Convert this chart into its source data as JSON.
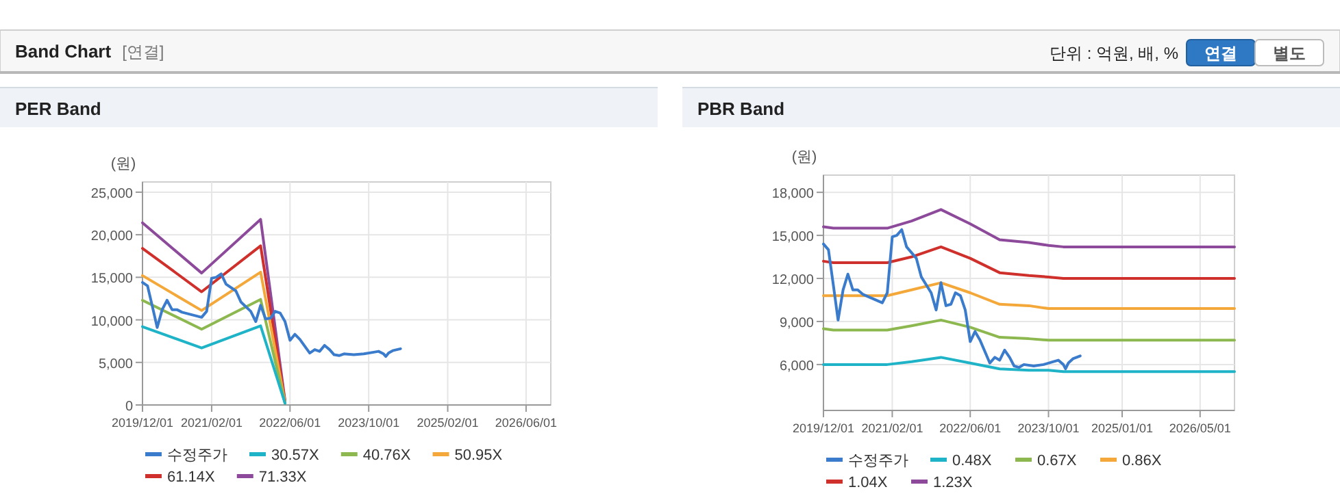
{
  "chart_data": [
    {
      "type": "other",
      "title": "Band Chart",
      "annotations": [
        "[연결]",
        "단위 : 억원, 배, %",
        "연결",
        "별도"
      ]
    },
    {
      "type": "line",
      "title": "PER Band",
      "ylabel": "(원)",
      "legend": "bottom",
      "grid": true,
      "xlim": [
        "2019-12-01",
        "2026-11-01"
      ],
      "ylim": [
        0,
        26200
      ],
      "yticks": [
        0,
        {
          "value": 5000,
          "label": "5,000"
        },
        {
          "value": 10000,
          "label": "10,000"
        },
        {
          "value": 15000,
          "label": "15,000"
        },
        {
          "value": 20000,
          "label": "20,000"
        },
        {
          "value": 25000,
          "label": "25,000"
        }
      ],
      "xticks": [
        {
          "value": "2019-12-01",
          "label": "2019/12/01"
        },
        {
          "value": "2021-02-01",
          "label": "2021/02/01"
        },
        {
          "value": "2022-06-01",
          "label": "2022/06/01"
        },
        {
          "value": "2023-10-01",
          "label": "2023/10/01"
        },
        {
          "value": "2025-02-01",
          "label": "2025/02/01"
        },
        {
          "value": "2026-06-01",
          "label": "2026/06/01"
        }
      ],
      "series": [
        {
          "name": "수정주가",
          "color": "#3a7bcc",
          "x": [
            "2019-12-01",
            "2020-01-01",
            "2020-02-01",
            "2020-03-01",
            "2020-04-01",
            "2020-05-01",
            "2020-06-01",
            "2020-07-01",
            "2020-08-01",
            "2020-10-01",
            "2020-12-01",
            "2021-01-01",
            "2021-02-01",
            "2021-03-01",
            "2021-04-01",
            "2021-05-01",
            "2021-07-01",
            "2021-08-01",
            "2021-10-01",
            "2021-11-01",
            "2021-12-01",
            "2022-01-01",
            "2022-02-01",
            "2022-03-01",
            "2022-04-01",
            "2022-05-01",
            "2022-06-01",
            "2022-07-01",
            "2022-08-01",
            "2022-10-01",
            "2022-11-01",
            "2022-12-01",
            "2023-01-01",
            "2023-02-01",
            "2023-03-01",
            "2023-04-01",
            "2023-05-01",
            "2023-07-01",
            "2023-09-01",
            "2023-11-01",
            "2023-12-01",
            "2024-01-01",
            "2024-01-15",
            "2024-02-01",
            "2024-03-01",
            "2024-04-15"
          ],
          "values": [
            14400,
            14000,
            11500,
            9100,
            11200,
            12300,
            11200,
            11200,
            10900,
            10600,
            10300,
            11000,
            14900,
            15000,
            15400,
            14200,
            13400,
            12100,
            11000,
            9800,
            11700,
            10100,
            10200,
            11000,
            10800,
            9800,
            7600,
            8300,
            7700,
            6100,
            6500,
            6300,
            7000,
            6500,
            5900,
            5800,
            6000,
            5900,
            6000,
            6200,
            6300,
            6000,
            5700,
            6100,
            6400,
            6600
          ]
        },
        {
          "name": "30.57X",
          "color": "#1fb3c7",
          "x": [
            "2019-12-01",
            "2020-12-01",
            "2021-12-01",
            "2022-05-01"
          ],
          "values": [
            9200,
            6700,
            9300,
            200
          ]
        },
        {
          "name": "40.76X",
          "color": "#8db850",
          "x": [
            "2019-12-01",
            "2020-12-01",
            "2021-12-01",
            "2022-05-01"
          ],
          "values": [
            12300,
            8900,
            12400,
            200
          ]
        },
        {
          "name": "50.95X",
          "color": "#f4a83a",
          "x": [
            "2019-12-01",
            "2020-12-01",
            "2021-12-01",
            "2022-05-01"
          ],
          "values": [
            15200,
            11100,
            15600,
            300
          ]
        },
        {
          "name": "61.14X",
          "color": "#cf302b",
          "x": [
            "2019-12-01",
            "2020-12-01",
            "2021-12-01",
            "2022-05-01"
          ],
          "values": [
            18400,
            13300,
            18700,
            400
          ]
        },
        {
          "name": "71.33X",
          "color": "#8d4a9b",
          "x": [
            "2019-12-01",
            "2020-12-01",
            "2021-12-01",
            "2022-05-01"
          ],
          "values": [
            21400,
            15500,
            21800,
            500
          ]
        }
      ]
    },
    {
      "type": "line",
      "title": "PBR Band",
      "ylabel": "(원)",
      "legend": "bottom",
      "grid": true,
      "xlim": [
        "2019-12-01",
        "2026-12-01"
      ],
      "ylim": [
        2800,
        19200
      ],
      "yticks": [
        {
          "value": 6000,
          "label": "6,000"
        },
        {
          "value": 9000,
          "label": "9,000"
        },
        {
          "value": 12000,
          "label": "12,000"
        },
        {
          "value": 15000,
          "label": "15,000"
        },
        {
          "value": 18000,
          "label": "18,000"
        }
      ],
      "xticks": [
        {
          "value": "2019-12-01",
          "label": "2019/12/01"
        },
        {
          "value": "2021-02-01",
          "label": "2021/02/01"
        },
        {
          "value": "2022-06-01",
          "label": "2022/06/01"
        },
        {
          "value": "2023-10-01",
          "label": "2023/10/01"
        },
        {
          "value": "2025-01-01",
          "label": "2025/01/01"
        },
        {
          "value": "2026-05-01",
          "label": "2026/05/01"
        }
      ],
      "series": [
        {
          "name": "수정주가",
          "color": "#3a7bcc",
          "x": [
            "2019-12-01",
            "2020-01-01",
            "2020-02-01",
            "2020-03-01",
            "2020-04-01",
            "2020-05-01",
            "2020-06-01",
            "2020-07-01",
            "2020-08-01",
            "2020-10-01",
            "2020-12-01",
            "2021-01-01",
            "2021-02-01",
            "2021-03-01",
            "2021-04-01",
            "2021-05-01",
            "2021-07-01",
            "2021-08-01",
            "2021-10-01",
            "2021-11-01",
            "2021-12-01",
            "2022-01-01",
            "2022-02-01",
            "2022-03-01",
            "2022-04-01",
            "2022-05-01",
            "2022-06-01",
            "2022-07-01",
            "2022-08-01",
            "2022-10-01",
            "2022-11-01",
            "2022-12-01",
            "2023-01-01",
            "2023-02-01",
            "2023-03-01",
            "2023-04-01",
            "2023-05-01",
            "2023-07-01",
            "2023-09-01",
            "2023-11-01",
            "2023-12-01",
            "2024-01-01",
            "2024-01-15",
            "2024-02-01",
            "2024-03-01",
            "2024-04-15"
          ],
          "values": [
            14400,
            14000,
            11500,
            9100,
            11200,
            12300,
            11200,
            11200,
            10900,
            10600,
            10300,
            11000,
            14900,
            15000,
            15400,
            14200,
            13400,
            12100,
            11000,
            9800,
            11700,
            10100,
            10200,
            11000,
            10800,
            9800,
            7600,
            8300,
            7700,
            6100,
            6500,
            6300,
            7000,
            6500,
            5900,
            5800,
            6000,
            5900,
            6000,
            6200,
            6300,
            6000,
            5700,
            6100,
            6400,
            6600
          ]
        },
        {
          "name": "0.48X",
          "color": "#1fb3c7",
          "x": [
            "2019-12-01",
            "2020-02-01",
            "2021-01-01",
            "2021-06-01",
            "2021-12-01",
            "2022-06-01",
            "2022-12-01",
            "2023-06-01",
            "2023-10-01",
            "2024-01-01",
            "2026-12-01"
          ],
          "values": [
            6000,
            6000,
            6000,
            6200,
            6500,
            6100,
            5700,
            5600,
            5600,
            5500,
            5500
          ]
        },
        {
          "name": "0.67X",
          "color": "#8db850",
          "x": [
            "2019-12-01",
            "2020-02-01",
            "2021-01-01",
            "2021-06-01",
            "2021-12-01",
            "2022-06-01",
            "2022-12-01",
            "2023-06-01",
            "2023-10-01",
            "2024-01-01",
            "2026-12-01"
          ],
          "values": [
            8500,
            8400,
            8400,
            8700,
            9100,
            8600,
            7900,
            7800,
            7700,
            7700,
            7700
          ]
        },
        {
          "name": "0.86X",
          "color": "#f4a83a",
          "x": [
            "2019-12-01",
            "2020-02-01",
            "2021-01-01",
            "2021-06-01",
            "2021-12-01",
            "2022-06-01",
            "2022-12-01",
            "2023-06-01",
            "2023-10-01",
            "2024-01-01",
            "2026-12-01"
          ],
          "values": [
            10800,
            10800,
            10800,
            11200,
            11700,
            11000,
            10200,
            10100,
            9900,
            9900,
            9900
          ]
        },
        {
          "name": "1.04X",
          "color": "#cf302b",
          "x": [
            "2019-12-01",
            "2020-02-01",
            "2021-01-01",
            "2021-06-01",
            "2021-12-01",
            "2022-06-01",
            "2022-12-01",
            "2023-06-01",
            "2023-10-01",
            "2024-01-01",
            "2026-12-01"
          ],
          "values": [
            13200,
            13100,
            13100,
            13500,
            14200,
            13400,
            12400,
            12200,
            12100,
            12000,
            12000
          ]
        },
        {
          "name": "1.23X",
          "color": "#8d4a9b",
          "x": [
            "2019-12-01",
            "2020-02-01",
            "2021-01-01",
            "2021-06-01",
            "2021-12-01",
            "2022-06-01",
            "2022-12-01",
            "2023-06-01",
            "2023-10-01",
            "2024-01-01",
            "2026-12-01"
          ],
          "values": [
            15600,
            15500,
            15500,
            16000,
            16800,
            15800,
            14700,
            14500,
            14300,
            14200,
            14200
          ]
        }
      ]
    }
  ]
}
